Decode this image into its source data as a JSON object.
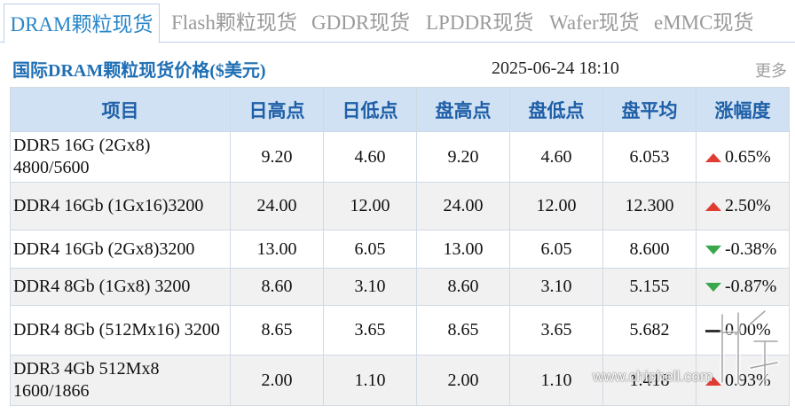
{
  "tabs": [
    {
      "label": "DRAM颗粒现货",
      "active": true
    },
    {
      "label": "Flash颗粒现货",
      "active": false
    },
    {
      "label": "GDDR现货",
      "active": false
    },
    {
      "label": "LPDDR现货",
      "active": false
    },
    {
      "label": "Wafer现货",
      "active": false
    },
    {
      "label": "eMMC现货",
      "active": false
    }
  ],
  "header": {
    "title": "国际DRAM颗粒现货价格($美元)",
    "timestamp": "2025-06-24 18:10",
    "more_label": "更多"
  },
  "table": {
    "columns": [
      "项目",
      "日高点",
      "日低点",
      "盘高点",
      "盘低点",
      "盘平均",
      "涨幅度"
    ],
    "rows": [
      {
        "item": "DDR5 16G (2Gx8) 4800/5600",
        "day_high": "9.20",
        "day_low": "4.60",
        "session_high": "9.20",
        "session_low": "4.60",
        "session_avg": "6.053",
        "change": "0.65%",
        "direction": "up"
      },
      {
        "item": "DDR4 16Gb (1Gx16)3200",
        "day_high": "24.00",
        "day_low": "12.00",
        "session_high": "24.00",
        "session_low": "12.00",
        "session_avg": "12.300",
        "change": "2.50%",
        "direction": "up"
      },
      {
        "item": "DDR4 16Gb (2Gx8)3200",
        "day_high": "13.00",
        "day_low": "6.05",
        "session_high": "13.00",
        "session_low": "6.05",
        "session_avg": "8.600",
        "change": "-0.38%",
        "direction": "down"
      },
      {
        "item": "DDR4 8Gb (1Gx8) 3200",
        "day_high": "8.60",
        "day_low": "3.10",
        "session_high": "8.60",
        "session_low": "3.10",
        "session_avg": "5.155",
        "change": "-0.87%",
        "direction": "down"
      },
      {
        "item": "DDR4 8Gb (512Mx16) 3200",
        "day_high": "8.65",
        "day_low": "3.65",
        "session_high": "8.65",
        "session_low": "3.65",
        "session_avg": "5.682",
        "change": "0.00%",
        "direction": "flat"
      },
      {
        "item": "DDR3 4Gb 512Mx8 1600/1866",
        "day_high": "2.00",
        "day_low": "1.10",
        "session_high": "2.00",
        "session_low": "1.10",
        "session_avg": "1.418",
        "change": "0.93%",
        "direction": "up"
      }
    ]
  },
  "watermark": {
    "text": "www.chiphell.com"
  },
  "colors": {
    "accent": "#2a86c8",
    "header_bg": "#cfe1f2",
    "up": "#e03c31",
    "down": "#3aa84a"
  }
}
